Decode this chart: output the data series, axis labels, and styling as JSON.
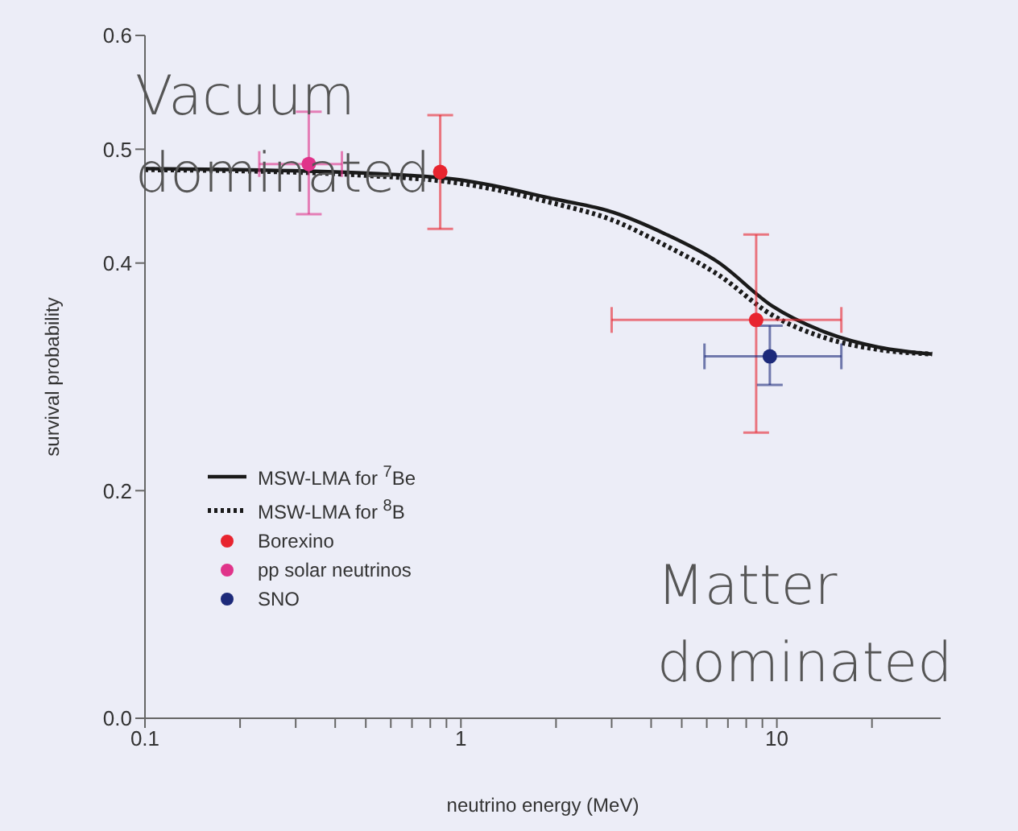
{
  "chart_data": {
    "type": "scatter",
    "xlabel": "neutrino energy (MeV)",
    "ylabel": "survival probability",
    "log": "x",
    "xlim": [
      0.1,
      33
    ],
    "xticks": [
      0.1,
      {
        "value": 0.2,
        "label": null
      },
      {
        "value": 0.3,
        "label": null
      },
      {
        "value": 0.4,
        "label": null
      },
      {
        "value": 0.5,
        "label": null
      },
      {
        "value": 0.6,
        "label": null
      },
      {
        "value": 0.7,
        "label": null
      },
      {
        "value": 0.8,
        "label": null
      },
      {
        "value": 0.9,
        "label": null
      },
      1,
      {
        "value": 2,
        "label": null
      },
      {
        "value": 3,
        "label": null
      },
      {
        "value": 4,
        "label": null
      },
      {
        "value": 5,
        "label": null
      },
      {
        "value": 6,
        "label": null
      },
      {
        "value": 7,
        "label": null
      },
      {
        "value": 8,
        "label": null
      },
      {
        "value": 9,
        "label": null
      },
      10,
      {
        "value": 20,
        "label": null
      }
    ],
    "ylim": [
      0,
      0.6
    ],
    "yticks": [
      {
        "value": 0,
        "label": "0.0"
      },
      0.2,
      0.4,
      0.5,
      0.6
    ],
    "legend": "bottom left",
    "series": [
      {
        "name": "MSW-LMA for $^{7}$Be",
        "type": "line",
        "line_style": "solid",
        "color": "#1a1a1a",
        "x": [
          0.1,
          0.2,
          0.5,
          1,
          2,
          3,
          4.4,
          6.5,
          9.7,
          14.3,
          21,
          31
        ],
        "values": [
          0.483,
          0.482,
          0.479,
          0.473,
          0.456,
          0.445,
          0.426,
          0.401,
          0.362,
          0.339,
          0.326,
          0.32
        ]
      },
      {
        "name": "MSW-LMA for $^{8}$B",
        "type": "line",
        "line_style": "dotted",
        "color": "#1a1a1a",
        "x": [
          0.1,
          0.2,
          0.5,
          1,
          2,
          3,
          4.4,
          6.5,
          9.7,
          14.3,
          21,
          31
        ],
        "values": [
          0.482,
          0.481,
          0.477,
          0.47,
          0.452,
          0.438,
          0.416,
          0.39,
          0.354,
          0.334,
          0.324,
          0.32
        ]
      },
      {
        "name": "Borexino",
        "marker": "circle",
        "color": "#e8242f",
        "x": [
          0.86,
          8.6
        ],
        "values": [
          0.48,
          0.35
        ],
        "errors": [
          [
            0.43,
            0.53
          ],
          [
            0.251,
            0.425
          ]
        ],
        "xerrors": [
          null,
          [
            3.0,
            16
          ]
        ]
      },
      {
        "name": "pp solar neutrinos",
        "marker": "circle",
        "color": "#e0338a",
        "x": [
          0.33
        ],
        "values": [
          0.487
        ],
        "errors": [
          [
            0.443,
            0.533
          ]
        ],
        "xerrors": [
          [
            0.23,
            0.42
          ]
        ]
      },
      {
        "name": "SNO",
        "marker": "circle",
        "color": "#1d2a7a",
        "x": [
          9.5
        ],
        "values": [
          0.318
        ],
        "errors": [
          [
            0.293,
            0.345
          ]
        ],
        "xerrors": [
          [
            5.9,
            16
          ]
        ]
      }
    ],
    "annotations": [
      "Vacuum dominated",
      "Matter dominated"
    ]
  }
}
